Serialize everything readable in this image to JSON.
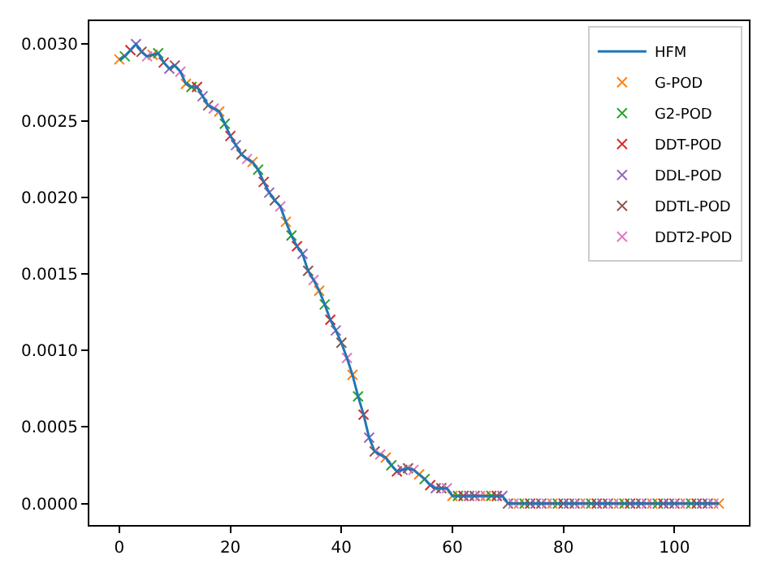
{
  "chart_data": {
    "type": "line",
    "xlim": [
      -5.4,
      113.4
    ],
    "ylim": [
      -0.00014,
      0.00315
    ],
    "xticks": [
      0,
      20,
      40,
      60,
      80,
      100
    ],
    "yticks": [
      {
        "value": 0,
        "label": "0.0000"
      },
      {
        "value": 0.0005,
        "label": "0.0005"
      },
      {
        "value": 0.001,
        "label": "0.0010"
      },
      {
        "value": 0.0015,
        "label": "0.0015"
      },
      {
        "value": 0.002,
        "label": "0.0020"
      },
      {
        "value": 0.0025,
        "label": "0.0025"
      },
      {
        "value": 0.003,
        "label": "0.0030"
      }
    ],
    "grid": false,
    "legend": "top right",
    "series": [
      {
        "name": "HFM",
        "type": "line",
        "color": "#1f77b4",
        "marker": "none",
        "line_style": "solid",
        "x": [
          0,
          1,
          2,
          3,
          4,
          5,
          6,
          7,
          8,
          9,
          10,
          11,
          12,
          13,
          14,
          15,
          16,
          17,
          18,
          19,
          20,
          21,
          22,
          23,
          24,
          25,
          26,
          27,
          28,
          29,
          30,
          31,
          32,
          33,
          34,
          35,
          36,
          37,
          38,
          39,
          40,
          41,
          42,
          43,
          44,
          45,
          46,
          47,
          48,
          49,
          50,
          51,
          52,
          53,
          54,
          55,
          56,
          57,
          58,
          59,
          60,
          61,
          62,
          63,
          64,
          65,
          66,
          67,
          68,
          69,
          70,
          71,
          72,
          73,
          74,
          75,
          76,
          77,
          78,
          79,
          80,
          81,
          82,
          83,
          84,
          85,
          86,
          87,
          88,
          89,
          90,
          91,
          92,
          93,
          94,
          95,
          96,
          97,
          98,
          99,
          100,
          101,
          102,
          103,
          104,
          105,
          106,
          107,
          108
        ],
        "values": [
          0.0029,
          0.00292,
          0.00296,
          0.003,
          0.00295,
          0.00292,
          0.00293,
          0.00294,
          0.00288,
          0.00284,
          0.00286,
          0.00282,
          0.00274,
          0.00272,
          0.00272,
          0.00266,
          0.0026,
          0.00258,
          0.00256,
          0.00248,
          0.0024,
          0.00234,
          0.00228,
          0.00225,
          0.00223,
          0.00218,
          0.0021,
          0.00203,
          0.00198,
          0.00194,
          0.00184,
          0.00175,
          0.00168,
          0.00163,
          0.00152,
          0.00146,
          0.00139,
          0.0013,
          0.0012,
          0.00113,
          0.00105,
          0.00095,
          0.00084,
          0.0007,
          0.00058,
          0.00043,
          0.00034,
          0.00032,
          0.0003,
          0.00025,
          0.00021,
          0.00022,
          0.00023,
          0.00022,
          0.00019,
          0.00016,
          0.00012,
          0.0001,
          0.0001,
          0.0001,
          5e-05,
          5e-05,
          5e-05,
          5e-05,
          5e-05,
          5e-05,
          5e-05,
          5e-05,
          5e-05,
          5e-05,
          0,
          0,
          0,
          0,
          0,
          0,
          0,
          0,
          0,
          0,
          0,
          0,
          0,
          0,
          0,
          0,
          0,
          0,
          0,
          0,
          0,
          0,
          0,
          0,
          0,
          0,
          0,
          0,
          0,
          0,
          0,
          0,
          0,
          0,
          0,
          0,
          0,
          0,
          0
        ]
      },
      {
        "name": "G-POD",
        "type": "scatter",
        "color": "#ff7f0e",
        "marker": "cross",
        "x": [
          0,
          6,
          12,
          18,
          24,
          30,
          36,
          42,
          48,
          54,
          60,
          66,
          72,
          78,
          84,
          90,
          96,
          102,
          108
        ],
        "values": [
          0.0029,
          0.00293,
          0.00274,
          0.00256,
          0.00223,
          0.00184,
          0.00139,
          0.00084,
          0.0003,
          0.00019,
          5e-05,
          5e-05,
          0,
          0,
          0,
          0,
          0,
          0,
          0
        ]
      },
      {
        "name": "G2-POD",
        "type": "scatter",
        "color": "#2ca02c",
        "marker": "cross",
        "x": [
          1,
          7,
          13,
          19,
          25,
          31,
          37,
          43,
          49,
          55,
          61,
          67,
          73,
          79,
          85,
          91,
          97,
          103
        ],
        "values": [
          0.00292,
          0.00294,
          0.00272,
          0.00248,
          0.00218,
          0.00175,
          0.0013,
          0.0007,
          0.00025,
          0.00016,
          5e-05,
          5e-05,
          0,
          0,
          0,
          0,
          0,
          0
        ]
      },
      {
        "name": "DDT-POD",
        "type": "scatter",
        "color": "#d62728",
        "marker": "cross",
        "x": [
          2,
          8,
          14,
          20,
          26,
          32,
          38,
          44,
          50,
          56,
          62,
          68,
          74,
          80,
          86,
          92,
          98,
          104
        ],
        "values": [
          0.00296,
          0.00288,
          0.00272,
          0.0024,
          0.0021,
          0.00168,
          0.0012,
          0.00058,
          0.00021,
          0.00012,
          5e-05,
          5e-05,
          0,
          0,
          0,
          0,
          0,
          0
        ]
      },
      {
        "name": "DDL-POD",
        "type": "scatter",
        "color": "#9467bd",
        "marker": "cross",
        "x": [
          3,
          9,
          15,
          21,
          27,
          33,
          39,
          45,
          51,
          57,
          63,
          69,
          75,
          81,
          87,
          93,
          99,
          105
        ],
        "values": [
          0.003,
          0.00284,
          0.00266,
          0.00234,
          0.00203,
          0.00163,
          0.00113,
          0.00043,
          0.00022,
          0.0001,
          5e-05,
          5e-05,
          0,
          0,
          0,
          0,
          0,
          0
        ]
      },
      {
        "name": "DDTL-POD",
        "type": "scatter",
        "color": "#8c564b",
        "marker": "cross",
        "x": [
          4,
          10,
          16,
          22,
          28,
          34,
          40,
          46,
          52,
          58,
          64,
          70,
          76,
          82,
          88,
          94,
          100,
          106
        ],
        "values": [
          0.00295,
          0.00286,
          0.0026,
          0.00228,
          0.00198,
          0.00152,
          0.00105,
          0.00034,
          0.00023,
          0.0001,
          5e-05,
          0,
          0,
          0,
          0,
          0,
          0,
          0
        ]
      },
      {
        "name": "DDT2-POD",
        "type": "scatter",
        "color": "#e377c2",
        "marker": "cross",
        "x": [
          5,
          11,
          17,
          23,
          29,
          35,
          41,
          47,
          53,
          59,
          65,
          71,
          77,
          83,
          89,
          95,
          101,
          107
        ],
        "values": [
          0.00292,
          0.00282,
          0.00258,
          0.00225,
          0.00194,
          0.00146,
          0.00095,
          0.00032,
          0.00022,
          0.0001,
          5e-05,
          0,
          0,
          0,
          0,
          0,
          0,
          0
        ]
      }
    ]
  }
}
